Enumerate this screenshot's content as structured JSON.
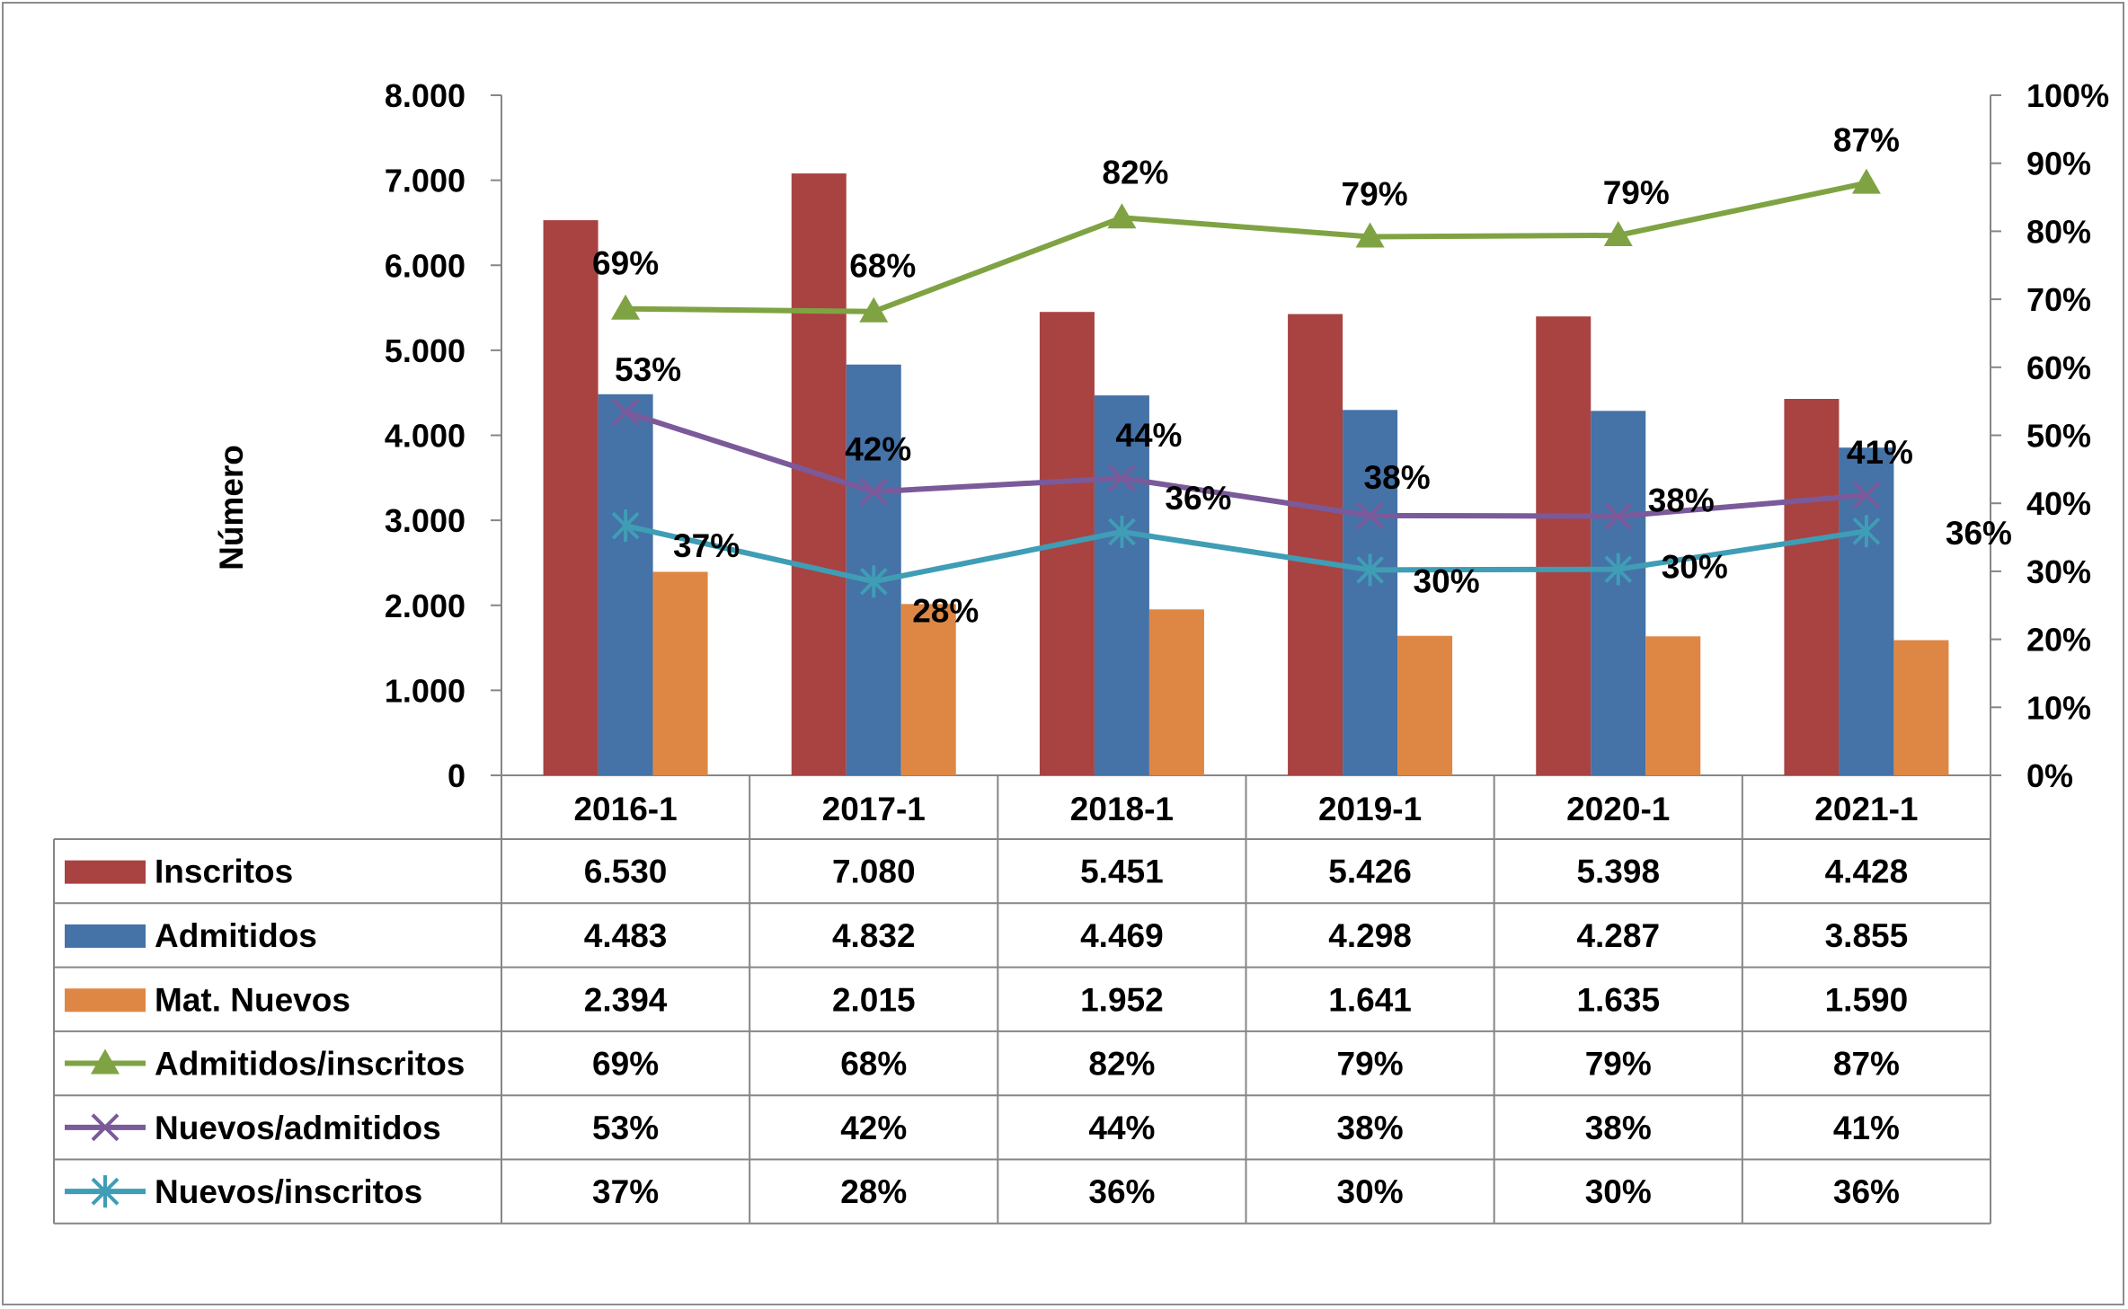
{
  "chart_data": {
    "type": "bar",
    "title": "",
    "ylabel": "Número",
    "y2label": "",
    "ylim": [
      0,
      8000
    ],
    "y2lim": [
      0,
      1
    ],
    "yticks": [
      "0",
      "1.000",
      "2.000",
      "3.000",
      "4.000",
      "5.000",
      "6.000",
      "7.000",
      "8.000"
    ],
    "y2ticks": [
      "0%",
      "10%",
      "20%",
      "30%",
      "40%",
      "50%",
      "60%",
      "70%",
      "80%",
      "90%",
      "100%"
    ],
    "categories": [
      "2016-1",
      "2017-1",
      "2018-1",
      "2019-1",
      "2020-1",
      "2021-1"
    ],
    "bar_series": [
      {
        "name": "Inscritos",
        "color": "#a84342",
        "values": [
          6530,
          7080,
          5451,
          5426,
          5398,
          4428
        ],
        "labels": [
          "6.530",
          "7.080",
          "5.451",
          "5.426",
          "5.398",
          "4.428"
        ]
      },
      {
        "name": "Admitidos",
        "color": "#4572a7",
        "values": [
          4483,
          4832,
          4469,
          4298,
          4287,
          3855
        ],
        "labels": [
          "4.483",
          "4.832",
          "4.469",
          "4.298",
          "4.287",
          "3.855"
        ]
      },
      {
        "name": "Mat. Nuevos",
        "color": "#de8744",
        "values": [
          2394,
          2015,
          1952,
          1641,
          1635,
          1590
        ],
        "labels": [
          "2.394",
          "2.015",
          "1.952",
          "1.641",
          "1.635",
          "1.590"
        ]
      }
    ],
    "line_series": [
      {
        "name": "Admitidos/inscritos",
        "color": "#7fa343",
        "marker": "triangle",
        "values": [
          0.686,
          0.682,
          0.82,
          0.792,
          0.794,
          0.871
        ],
        "labels": [
          "69%",
          "68%",
          "82%",
          "79%",
          "79%",
          "87%"
        ]
      },
      {
        "name": "Nuevos/admitidos",
        "color": "#7a5a9a",
        "marker": "x",
        "values": [
          0.534,
          0.417,
          0.437,
          0.382,
          0.381,
          0.412
        ],
        "labels": [
          "53%",
          "42%",
          "44%",
          "38%",
          "38%",
          "41%"
        ]
      },
      {
        "name": "Nuevos/inscritos",
        "color": "#3f9db5",
        "marker": "star",
        "values": [
          0.367,
          0.285,
          0.358,
          0.302,
          0.303,
          0.359
        ],
        "labels": [
          "37%",
          "28%",
          "36%",
          "30%",
          "30%",
          "36%"
        ]
      }
    ]
  }
}
